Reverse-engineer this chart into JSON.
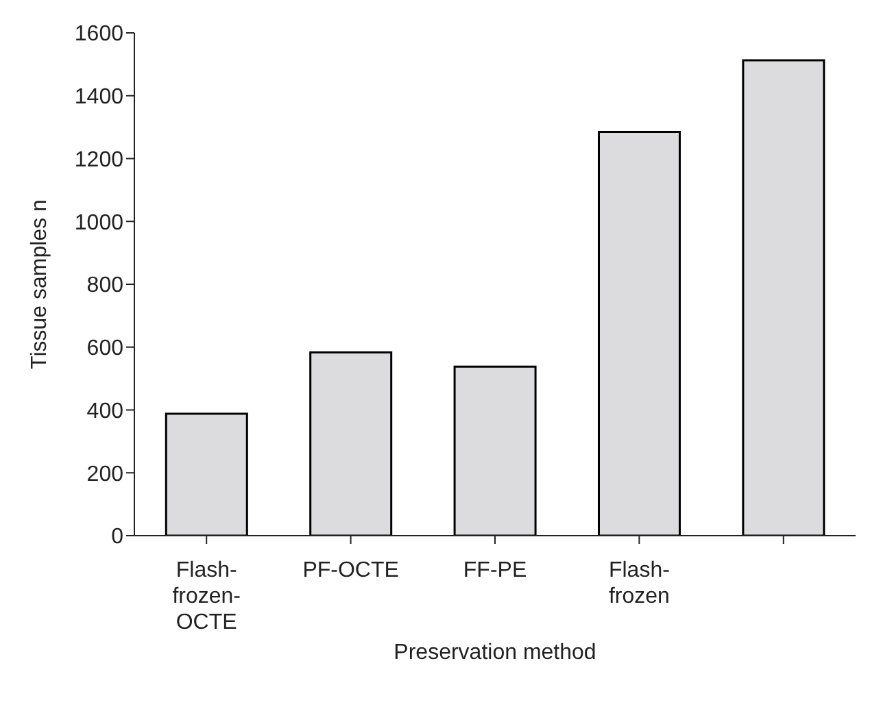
{
  "chart_data": {
    "type": "bar",
    "xlabel": "Preservation method",
    "ylabel": "Tissue samples n",
    "categories": [
      "Flash-frozen-OCTE",
      "PF-OCTE",
      "FF-PE",
      "Flash-frozen",
      null
    ],
    "values": [
      388,
      583,
      538,
      1285,
      1513
    ],
    "color": "#dcdcde",
    "ylim": [
      0,
      1600
    ],
    "yticks": [
      0,
      200,
      400,
      600,
      800,
      1000,
      1200,
      1400,
      1600
    ],
    "grid": false,
    "legend": false
  }
}
